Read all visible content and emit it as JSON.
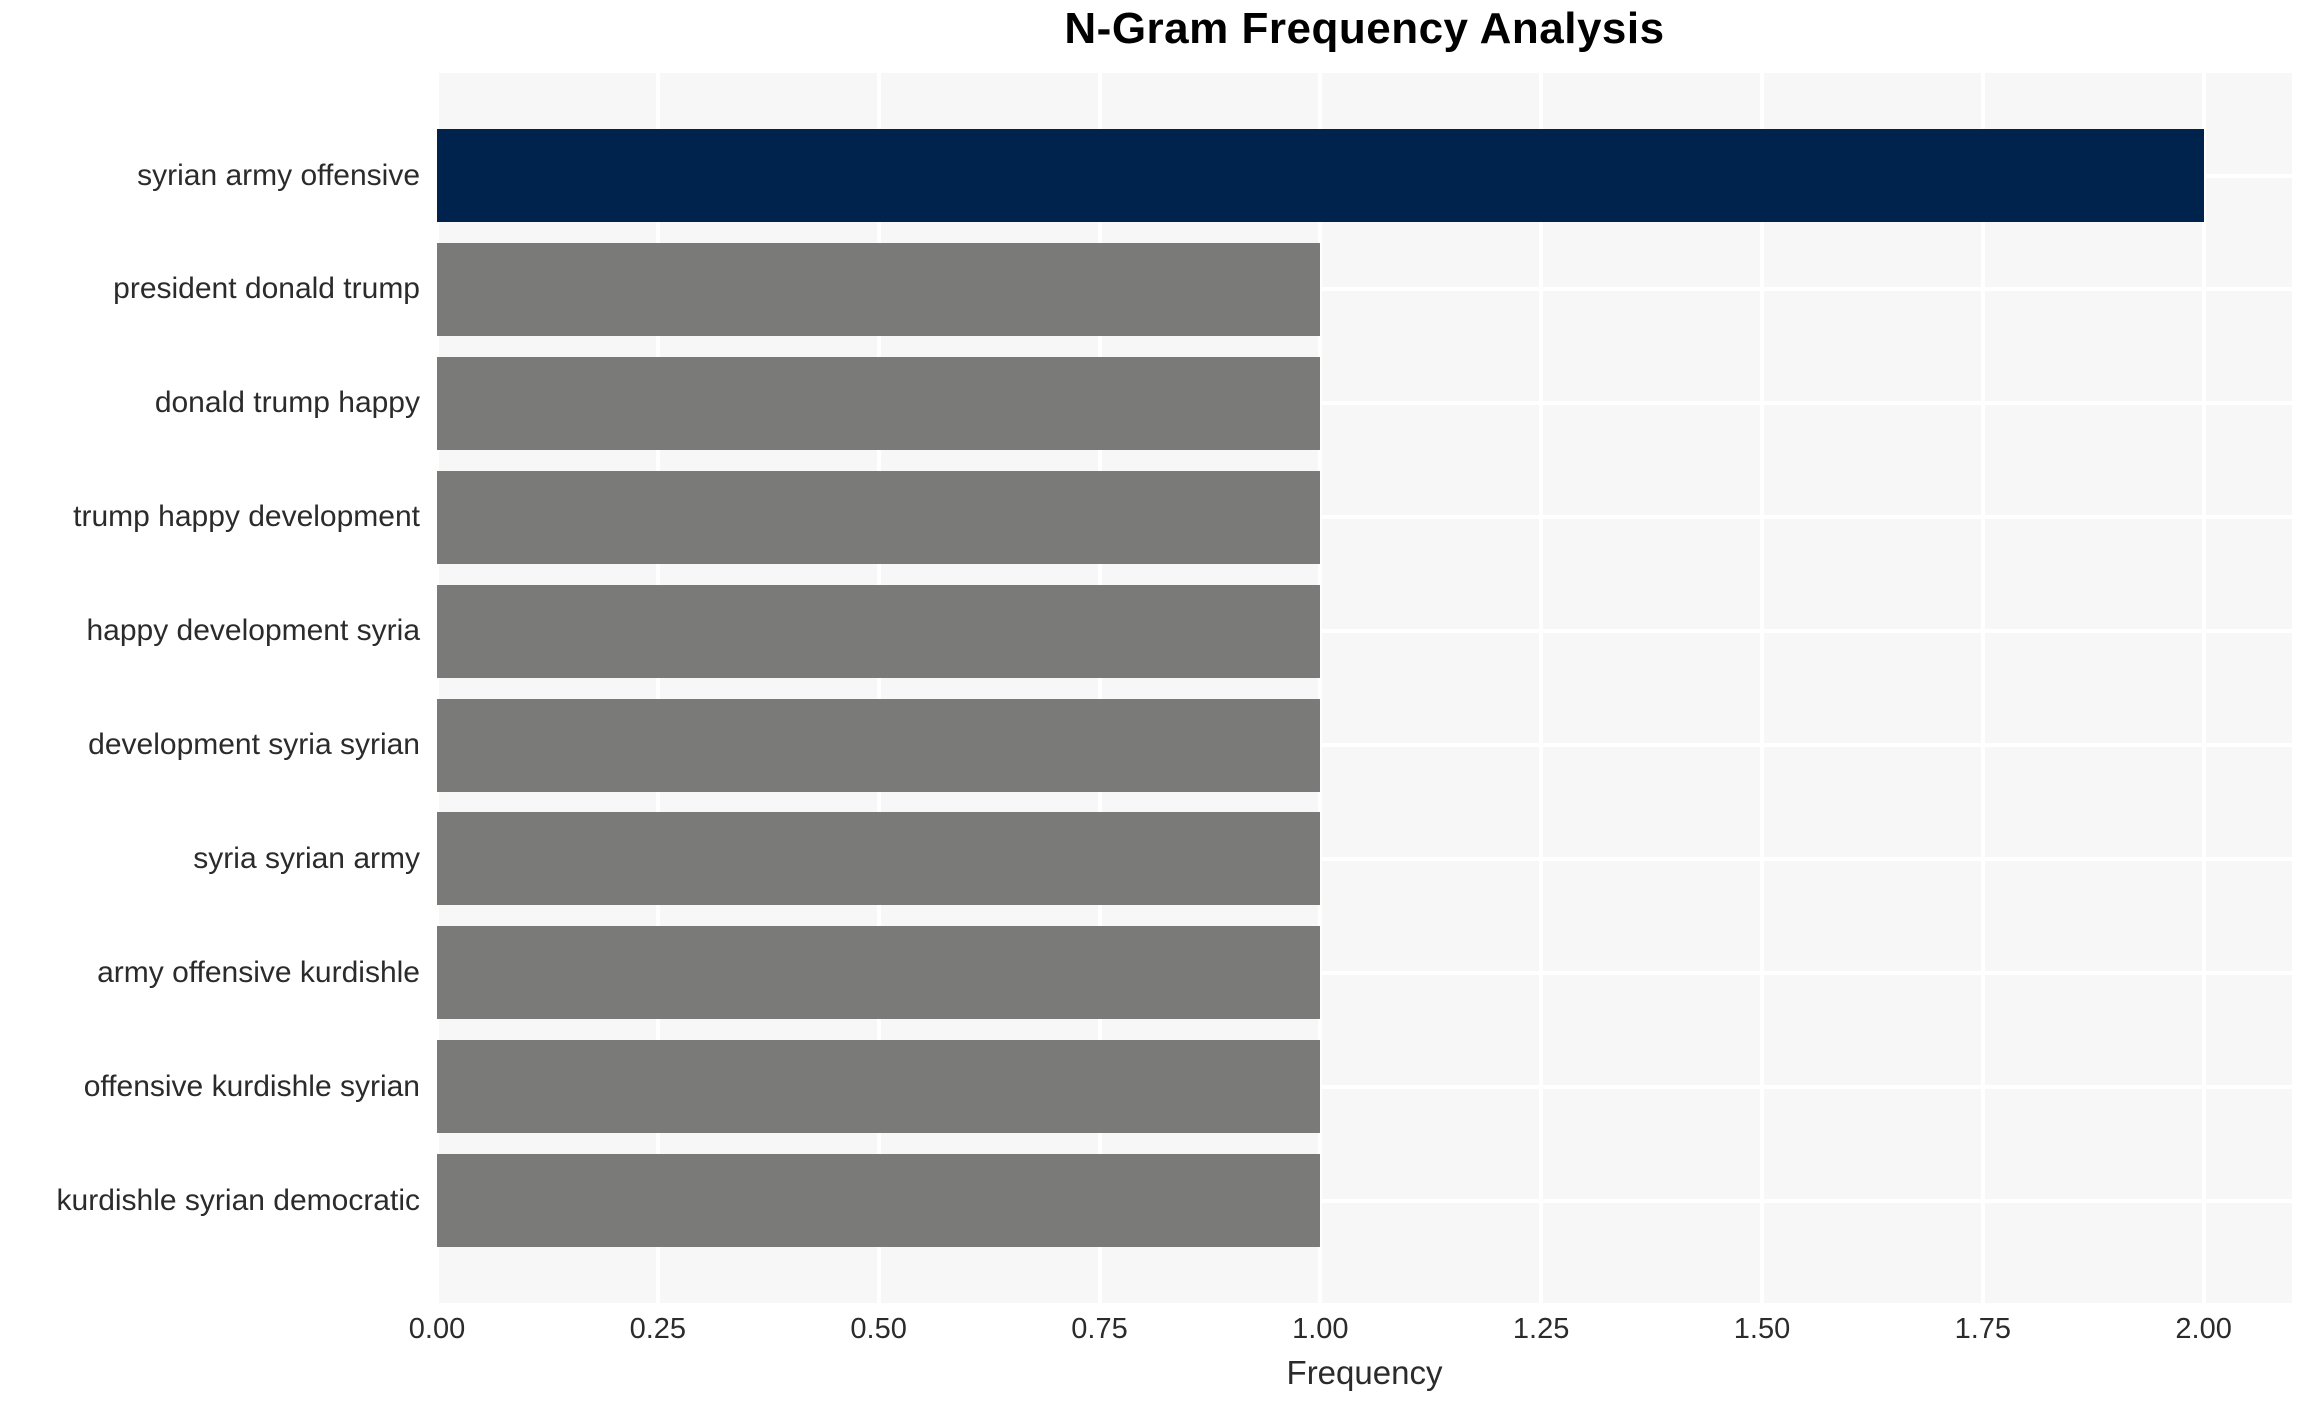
{
  "chart_data": {
    "type": "bar",
    "orientation": "horizontal",
    "title": "N-Gram Frequency Analysis",
    "xlabel": "Frequency",
    "ylabel": "",
    "categories": [
      "syrian army offensive",
      "president donald trump",
      "donald trump happy",
      "trump happy development",
      "happy development syria",
      "development syria syrian",
      "syria syrian army",
      "army offensive kurdishle",
      "offensive kurdishle syrian",
      "kurdishle syrian democratic"
    ],
    "values": [
      2,
      1,
      1,
      1,
      1,
      1,
      1,
      1,
      1,
      1
    ],
    "bar_colors": [
      "#00234e",
      "#7a7a78",
      "#7a7a78",
      "#7a7a78",
      "#7a7a78",
      "#7a7a78",
      "#7a7a78",
      "#7a7a78",
      "#7a7a78",
      "#7a7a78"
    ],
    "xlim": [
      0,
      2.1
    ],
    "xticks": [
      0,
      0.25,
      0.5,
      0.75,
      1,
      1.25,
      1.5,
      1.75,
      2
    ],
    "xtick_labels": [
      "0.00",
      "0.25",
      "0.50",
      "0.75",
      "1.00",
      "1.25",
      "1.50",
      "1.75",
      "2.00"
    ],
    "grid": "white vertical lines at x ticks and horizontal lines at category centers on light gray plot background",
    "legend": "none",
    "colors": {
      "highlight_bar": "#00234e",
      "default_bar": "#7a7a78",
      "plot_background": "#f7f7f7",
      "gridline": "#ffffff",
      "tick_text": "#2b2b2b",
      "title_text": "#000000",
      "page_background": "#ffffff"
    }
  }
}
